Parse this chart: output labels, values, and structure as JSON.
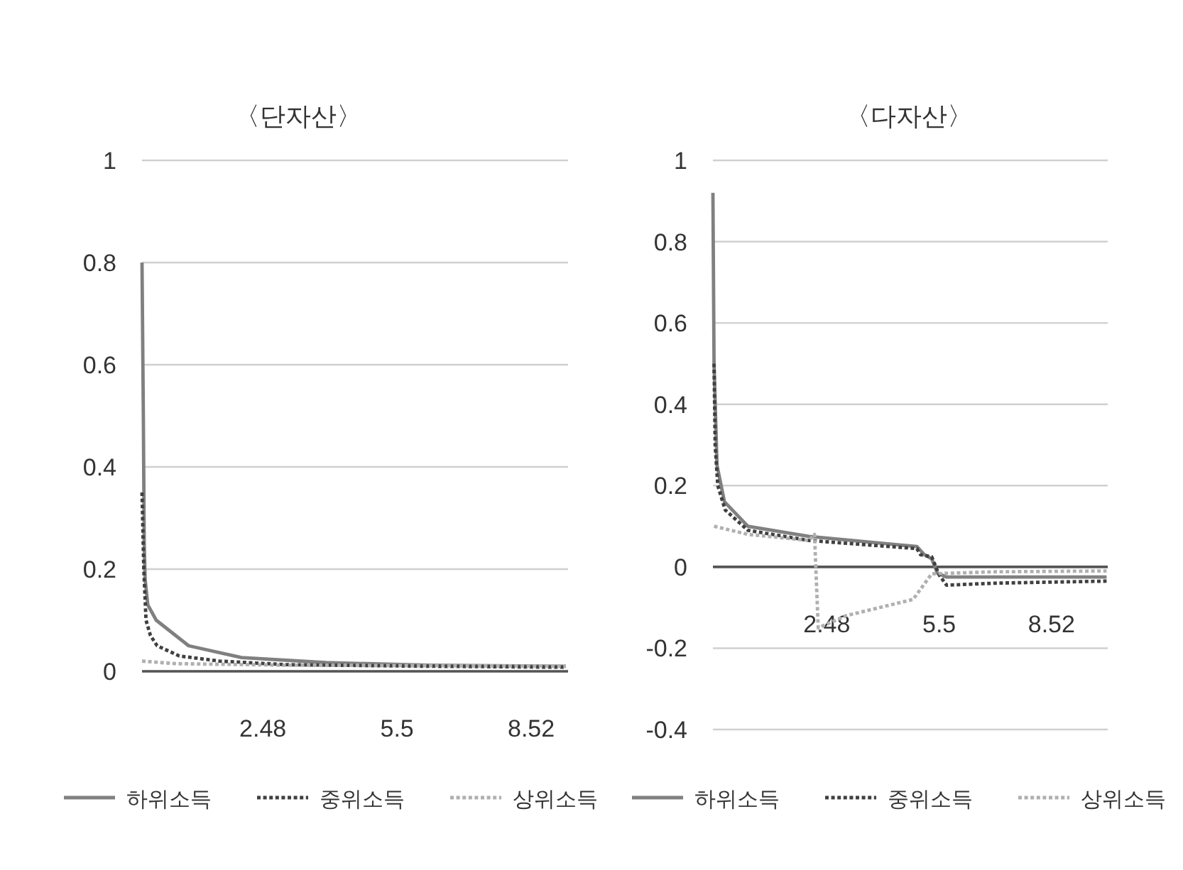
{
  "chart_data": [
    {
      "type": "line",
      "title": "〈단자산〉",
      "xlim": [
        -0.24,
        9.35
      ],
      "xticks": [
        2.48,
        5.5,
        8.52
      ],
      "ylim": [
        0,
        1
      ],
      "yticks": [
        0,
        0.2,
        0.4,
        0.6,
        0.8,
        1
      ],
      "grid": "y",
      "legend": "bottom",
      "series": [
        {
          "name": "하위소득",
          "color": "#808080",
          "line_style": "solid",
          "x": [
            -0.24,
            -0.21,
            -0.19,
            -0.17,
            -0.11,
            0.08,
            0.81,
            2.0,
            3.9,
            6.2,
            9.3
          ],
          "values": [
            0.8,
            0.5,
            0.25,
            0.18,
            0.13,
            0.1,
            0.05,
            0.027,
            0.017,
            0.012,
            0.01
          ]
        },
        {
          "name": "중위소득",
          "color": "#404040",
          "line_style": "dotted",
          "x": [
            -0.24,
            -0.2,
            -0.15,
            -0.05,
            0.1,
            0.6,
            1.5,
            3.0,
            6.0,
            9.3
          ],
          "values": [
            0.35,
            0.2,
            0.1,
            0.07,
            0.05,
            0.03,
            0.02,
            0.013,
            0.01,
            0.008
          ]
        },
        {
          "name": "상위소득",
          "color": "#b0b0b0",
          "line_style": "dotted",
          "x": [
            -0.24,
            0.5,
            3.0,
            9.3
          ],
          "values": [
            0.02,
            0.015,
            0.012,
            0.01
          ]
        }
      ]
    },
    {
      "type": "line",
      "title": "〈다자산〉",
      "xlim": [
        -0.58,
        10.03
      ],
      "xticks": [
        2.48,
        5.5,
        8.52
      ],
      "ylim": [
        -0.4,
        1
      ],
      "yticks": [
        -0.4,
        -0.2,
        0,
        0.2,
        0.4,
        0.6,
        0.8,
        1
      ],
      "grid": "y",
      "legend": "bottom",
      "series": [
        {
          "name": "하위소득",
          "color": "#808080",
          "line_style": "solid",
          "x": [
            -0.58,
            -0.55,
            -0.47,
            -0.27,
            0.36,
            2.0,
            4.9,
            5.1,
            5.3,
            5.45,
            5.7,
            10.0
          ],
          "values": [
            0.92,
            0.5,
            0.25,
            0.16,
            0.1,
            0.075,
            0.05,
            0.03,
            0.02,
            -0.015,
            -0.025,
            -0.025
          ]
        },
        {
          "name": "중위소득",
          "color": "#404040",
          "line_style": "dotted",
          "x": [
            -0.55,
            -0.52,
            -0.45,
            -0.25,
            0.36,
            2.0,
            4.9,
            5.0,
            5.3,
            5.5,
            5.7,
            7.0,
            10.0
          ],
          "values": [
            0.5,
            0.3,
            0.2,
            0.14,
            0.09,
            0.065,
            0.045,
            0.03,
            0.025,
            -0.02,
            -0.045,
            -0.04,
            -0.035
          ]
        },
        {
          "name": "상위소득",
          "color": "#b0b0b0",
          "line_style": "dotted",
          "x": [
            -0.55,
            0.36,
            2.0,
            2.15,
            2.25,
            3.0,
            4.8,
            5.3,
            7.0,
            10.0
          ],
          "values": [
            0.1,
            0.08,
            0.065,
            0.08,
            -0.15,
            -0.12,
            -0.08,
            -0.017,
            -0.012,
            -0.01
          ]
        }
      ]
    }
  ]
}
